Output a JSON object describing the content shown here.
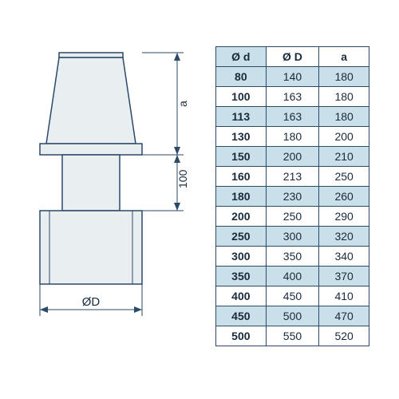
{
  "diagram": {
    "label_top": "a",
    "label_mid": "100",
    "label_bottom": "ØD",
    "stroke": "#2b4a6a",
    "fill": "#e9eef1",
    "dim_color": "#2b4a6a",
    "font_size": 14
  },
  "table": {
    "headers": [
      "Ø d",
      "Ø D",
      "a"
    ],
    "header_bg_left": "#c9dfe9",
    "border_color": "#2b4a6a",
    "shade_bg": "#c9dfe9",
    "rows": [
      {
        "d": "80",
        "D": "140",
        "a": "180",
        "shaded": true
      },
      {
        "d": "100",
        "D": "163",
        "a": "180",
        "shaded": false
      },
      {
        "d": "113",
        "D": "163",
        "a": "180",
        "shaded": true
      },
      {
        "d": "130",
        "D": "180",
        "a": "200",
        "shaded": false
      },
      {
        "d": "150",
        "D": "200",
        "a": "210",
        "shaded": true
      },
      {
        "d": "160",
        "D": "213",
        "a": "250",
        "shaded": false
      },
      {
        "d": "180",
        "D": "230",
        "a": "260",
        "shaded": true
      },
      {
        "d": "200",
        "D": "250",
        "a": "290",
        "shaded": false
      },
      {
        "d": "250",
        "D": "300",
        "a": "320",
        "shaded": true
      },
      {
        "d": "300",
        "D": "350",
        "a": "340",
        "shaded": false
      },
      {
        "d": "350",
        "D": "400",
        "a": "370",
        "shaded": true
      },
      {
        "d": "400",
        "D": "450",
        "a": "410",
        "shaded": false
      },
      {
        "d": "450",
        "D": "500",
        "a": "470",
        "shaded": true
      },
      {
        "d": "500",
        "D": "550",
        "a": "520",
        "shaded": false
      }
    ]
  }
}
